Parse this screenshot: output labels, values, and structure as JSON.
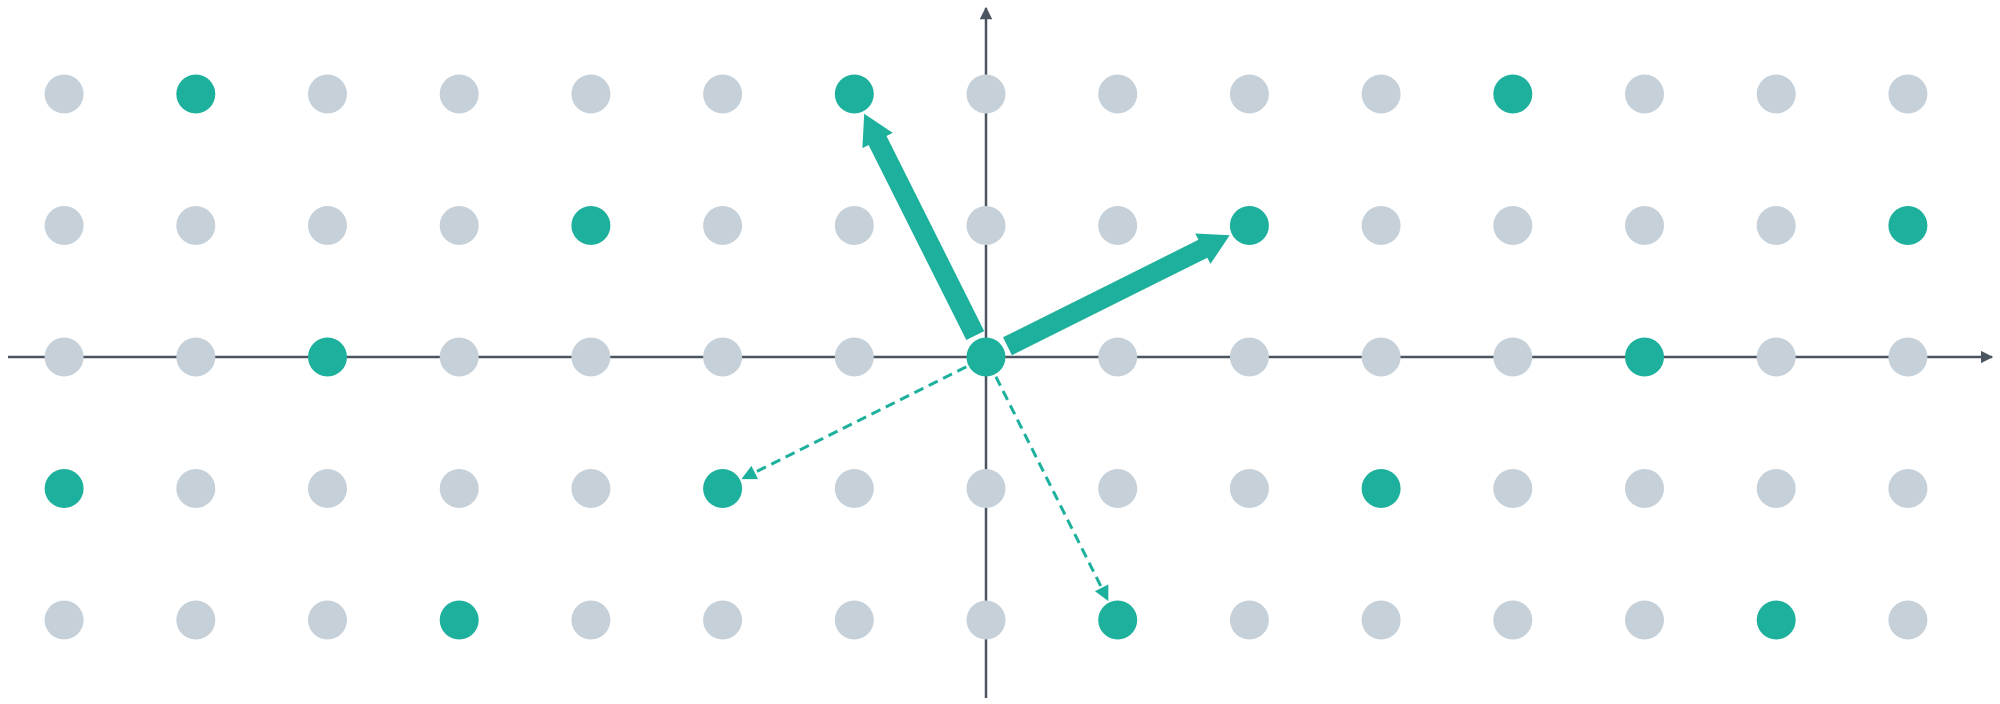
{
  "colors": {
    "axis": "#4a5560",
    "lattice_point": "#c5d0d9",
    "sublattice_point": "#1cb09d",
    "vector": "#1cb09d",
    "background": "#ffffff"
  },
  "lattice": {
    "columns": [
      -7,
      -6,
      -5,
      -4,
      -3,
      -2,
      -1,
      0,
      1,
      2,
      3,
      4,
      5,
      6,
      7
    ],
    "rows": [
      2,
      1,
      0,
      -1,
      -2
    ],
    "highlighted_points": [
      [
        -6,
        2
      ],
      [
        -1,
        2
      ],
      [
        4,
        2
      ],
      [
        -3,
        1
      ],
      [
        2,
        1
      ],
      [
        7,
        1
      ],
      [
        -5,
        0
      ],
      [
        0,
        0
      ],
      [
        5,
        0
      ],
      [
        -7,
        -1
      ],
      [
        -2,
        -1
      ],
      [
        3,
        -1
      ],
      [
        -4,
        -2
      ],
      [
        1,
        -2
      ],
      [
        6,
        -2
      ]
    ]
  },
  "basis_vectors": [
    {
      "name": "basis-vector-a",
      "from": [
        0,
        0
      ],
      "to": [
        2,
        1
      ],
      "style": "solid"
    },
    {
      "name": "basis-vector-b",
      "from": [
        0,
        0
      ],
      "to": [
        -1,
        2
      ],
      "style": "solid"
    }
  ],
  "reduced_vectors": [
    {
      "name": "dashed-vector-c",
      "from": [
        0,
        0
      ],
      "to": [
        -2,
        -1
      ],
      "style": "dashed"
    },
    {
      "name": "dashed-vector-d",
      "from": [
        0,
        0
      ],
      "to": [
        1,
        -2
      ],
      "style": "dashed"
    }
  ],
  "axes": {
    "horizontal": true,
    "vertical": true
  }
}
